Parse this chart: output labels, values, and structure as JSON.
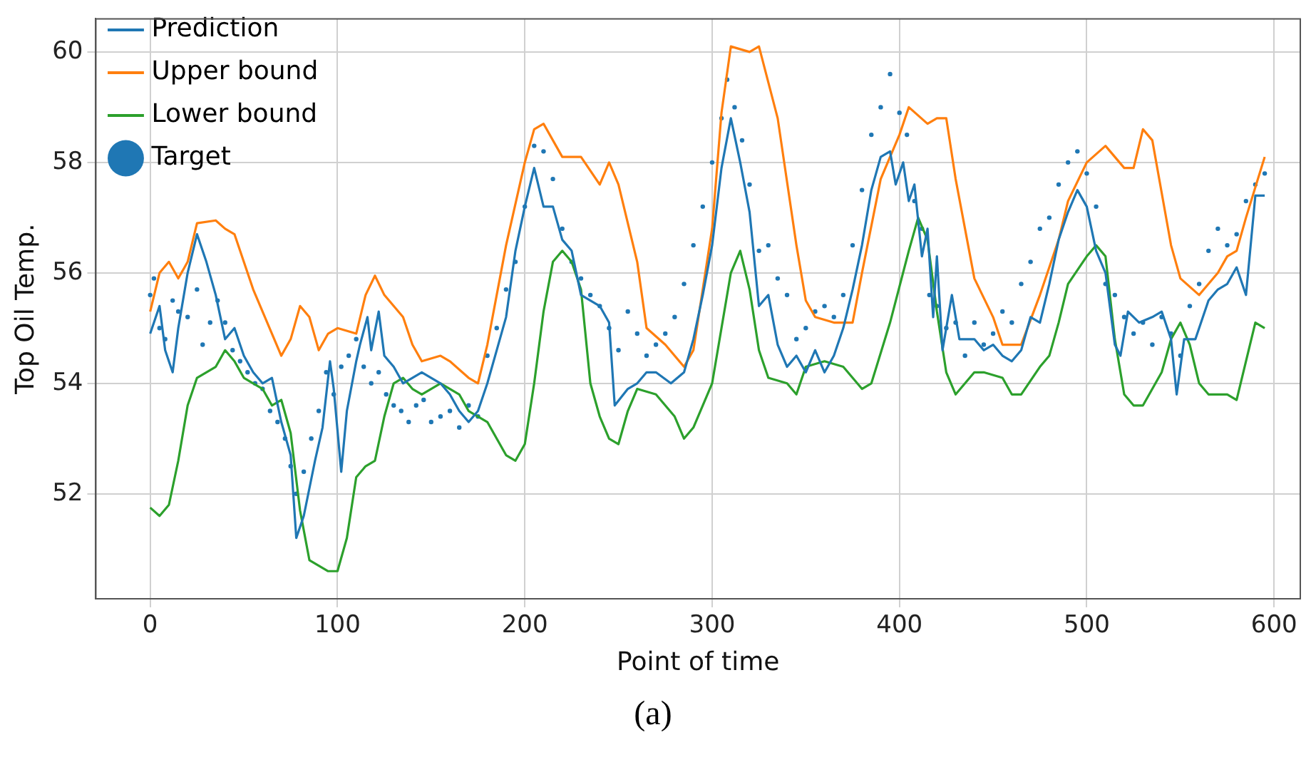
{
  "chart_data": {
    "type": "line",
    "xlabel": "Point of time",
    "ylabel": "Top Oil Temp.",
    "annotations": [
      "(a)"
    ],
    "xlim": [
      -29,
      614
    ],
    "ylim": [
      50.1,
      60.6
    ],
    "xticks": [
      0,
      100,
      200,
      300,
      400,
      500,
      600
    ],
    "yticks": [
      52,
      54,
      56,
      58,
      60
    ],
    "grid": true,
    "legend": "top left",
    "line_style": "solid",
    "series": [
      {
        "name": "Prediction",
        "color": "#1f77b4",
        "type": "line",
        "marker": "none",
        "x": [
          0,
          5,
          8,
          12,
          15,
          20,
          25,
          30,
          35,
          40,
          45,
          50,
          55,
          60,
          65,
          70,
          75,
          78,
          82,
          88,
          92,
          96,
          98,
          102,
          105,
          110,
          112,
          116,
          118,
          122,
          125,
          130,
          135,
          140,
          145,
          150,
          155,
          160,
          165,
          170,
          175,
          180,
          185,
          190,
          195,
          200,
          205,
          210,
          215,
          220,
          225,
          230,
          235,
          240,
          245,
          248,
          255,
          260,
          265,
          270,
          278,
          285,
          290,
          295,
          300,
          305,
          310,
          315,
          320,
          325,
          330,
          335,
          340,
          345,
          350,
          355,
          360,
          365,
          370,
          375,
          380,
          385,
          390,
          395,
          398,
          402,
          405,
          408,
          412,
          415,
          418,
          420,
          423,
          428,
          432,
          440,
          445,
          450,
          455,
          460,
          465,
          470,
          475,
          480,
          485,
          490,
          495,
          500,
          505,
          510,
          515,
          518,
          522,
          528,
          535,
          540,
          545,
          548,
          552,
          558,
          565,
          570,
          575,
          580,
          585,
          590,
          595
        ],
        "values": [
          54.9,
          55.4,
          54.6,
          54.2,
          55.0,
          56.0,
          56.7,
          56.2,
          55.6,
          54.8,
          55.0,
          54.5,
          54.2,
          54.0,
          54.1,
          53.3,
          52.7,
          51.2,
          51.6,
          52.6,
          53.2,
          54.4,
          53.9,
          52.4,
          53.5,
          54.4,
          54.7,
          55.2,
          54.6,
          55.3,
          54.5,
          54.3,
          54.0,
          54.1,
          54.2,
          54.1,
          54.0,
          53.8,
          53.5,
          53.3,
          53.5,
          54.0,
          54.6,
          55.2,
          56.4,
          57.2,
          57.9,
          57.2,
          57.2,
          56.6,
          56.4,
          55.6,
          55.5,
          55.4,
          55.1,
          53.6,
          53.9,
          54.0,
          54.2,
          54.2,
          54.0,
          54.2,
          54.8,
          55.6,
          56.5,
          57.9,
          58.8,
          58.0,
          57.1,
          55.4,
          55.6,
          54.7,
          54.3,
          54.5,
          54.2,
          54.6,
          54.2,
          54.5,
          55.0,
          55.7,
          56.5,
          57.5,
          58.1,
          58.2,
          57.6,
          58.0,
          57.3,
          57.6,
          56.3,
          56.8,
          55.2,
          56.3,
          54.6,
          55.6,
          54.8,
          54.8,
          54.6,
          54.7,
          54.5,
          54.4,
          54.6,
          55.2,
          55.1,
          55.8,
          56.6,
          57.1,
          57.5,
          57.2,
          56.4,
          56.0,
          54.7,
          54.5,
          55.3,
          55.1,
          55.2,
          55.3,
          54.8,
          53.8,
          54.8,
          54.8,
          55.5,
          55.7,
          55.8,
          56.1,
          55.6,
          57.4,
          57.4
        ]
      },
      {
        "name": "Upper bound",
        "color": "#ff7f0e",
        "type": "line",
        "marker": "none",
        "x": [
          0,
          5,
          10,
          15,
          20,
          25,
          35,
          40,
          45,
          55,
          65,
          70,
          75,
          80,
          85,
          90,
          95,
          100,
          110,
          115,
          120,
          125,
          135,
          140,
          145,
          155,
          160,
          170,
          175,
          180,
          190,
          200,
          205,
          210,
          220,
          230,
          240,
          245,
          250,
          260,
          265,
          275,
          285,
          290,
          300,
          305,
          310,
          320,
          325,
          335,
          345,
          350,
          355,
          365,
          375,
          380,
          390,
          400,
          405,
          415,
          420,
          425,
          430,
          440,
          450,
          455,
          465,
          475,
          485,
          490,
          500,
          510,
          520,
          525,
          530,
          535,
          545,
          550,
          560,
          565,
          570,
          575,
          580,
          585,
          595
        ],
        "values": [
          55.3,
          56.0,
          56.2,
          55.9,
          56.2,
          56.9,
          56.95,
          56.8,
          56.7,
          55.7,
          54.9,
          54.5,
          54.8,
          55.4,
          55.2,
          54.6,
          54.9,
          55.0,
          54.9,
          55.6,
          55.95,
          55.6,
          55.2,
          54.7,
          54.4,
          54.5,
          54.4,
          54.1,
          54.0,
          54.7,
          56.5,
          58.0,
          58.6,
          58.7,
          58.1,
          58.1,
          57.6,
          58.0,
          57.6,
          56.2,
          55.0,
          54.7,
          54.3,
          54.6,
          56.8,
          58.9,
          60.1,
          60.0,
          60.1,
          58.8,
          56.5,
          55.5,
          55.2,
          55.1,
          55.1,
          56.0,
          57.7,
          58.5,
          59.0,
          58.7,
          58.8,
          58.8,
          57.7,
          55.9,
          55.2,
          54.7,
          54.7,
          55.6,
          56.6,
          57.3,
          58.0,
          58.3,
          57.9,
          57.9,
          58.6,
          58.4,
          56.5,
          55.9,
          55.6,
          55.8,
          56.0,
          56.3,
          56.4,
          57.0,
          58.1
        ]
      },
      {
        "name": "Lower bound",
        "color": "#2ca02c",
        "type": "line",
        "marker": "none",
        "x": [
          0,
          5,
          10,
          15,
          20,
          25,
          35,
          40,
          45,
          50,
          60,
          65,
          70,
          75,
          80,
          85,
          90,
          95,
          100,
          105,
          110,
          115,
          120,
          125,
          130,
          135,
          140,
          145,
          150,
          155,
          165,
          170,
          180,
          190,
          195,
          200,
          205,
          210,
          215,
          220,
          225,
          230,
          235,
          240,
          245,
          250,
          255,
          260,
          270,
          280,
          285,
          290,
          300,
          305,
          310,
          315,
          320,
          325,
          330,
          340,
          345,
          350,
          360,
          370,
          380,
          385,
          395,
          405,
          410,
          415,
          420,
          425,
          430,
          435,
          440,
          445,
          455,
          460,
          465,
          475,
          480,
          485,
          490,
          500,
          505,
          510,
          515,
          520,
          525,
          530,
          540,
          545,
          550,
          555,
          560,
          565,
          575,
          580,
          590,
          595
        ],
        "values": [
          51.75,
          51.6,
          51.8,
          52.6,
          53.6,
          54.1,
          54.3,
          54.6,
          54.4,
          54.1,
          53.9,
          53.6,
          53.7,
          53.1,
          51.7,
          50.8,
          50.7,
          50.6,
          50.6,
          51.2,
          52.3,
          52.5,
          52.6,
          53.4,
          54.0,
          54.1,
          53.9,
          53.8,
          53.9,
          54.0,
          53.8,
          53.5,
          53.3,
          52.7,
          52.6,
          52.9,
          54.0,
          55.3,
          56.2,
          56.4,
          56.2,
          55.7,
          54.0,
          53.4,
          53.0,
          52.9,
          53.5,
          53.9,
          53.8,
          53.4,
          53.0,
          53.2,
          54.0,
          55.0,
          56.0,
          56.4,
          55.7,
          54.6,
          54.1,
          54.0,
          53.8,
          54.3,
          54.4,
          54.3,
          53.9,
          54.0,
          55.1,
          56.4,
          57.0,
          56.6,
          55.3,
          54.2,
          53.8,
          54.0,
          54.2,
          54.2,
          54.1,
          53.8,
          53.8,
          54.3,
          54.5,
          55.1,
          55.8,
          56.3,
          56.5,
          56.3,
          54.8,
          53.8,
          53.6,
          53.6,
          54.2,
          54.8,
          55.1,
          54.7,
          54.0,
          53.8,
          53.8,
          53.7,
          55.1,
          55.0
        ]
      },
      {
        "name": "Target",
        "color": "#1f77b4",
        "type": "scatter",
        "marker": "circle",
        "x": [
          0,
          2,
          5,
          8,
          12,
          15,
          20,
          25,
          28,
          32,
          36,
          40,
          44,
          48,
          52,
          56,
          60,
          64,
          68,
          72,
          75,
          78,
          82,
          86,
          90,
          94,
          98,
          102,
          106,
          110,
          114,
          118,
          122,
          126,
          130,
          134,
          138,
          142,
          146,
          150,
          155,
          160,
          165,
          170,
          175,
          180,
          185,
          190,
          195,
          200,
          205,
          210,
          215,
          220,
          225,
          230,
          235,
          240,
          245,
          250,
          255,
          260,
          265,
          270,
          275,
          280,
          285,
          290,
          295,
          300,
          305,
          308,
          312,
          316,
          320,
          325,
          330,
          335,
          340,
          345,
          350,
          355,
          360,
          365,
          370,
          375,
          380,
          385,
          390,
          395,
          400,
          404,
          408,
          412,
          416,
          420,
          425,
          430,
          435,
          440,
          445,
          450,
          455,
          460,
          465,
          470,
          475,
          480,
          485,
          490,
          495,
          500,
          505,
          510,
          515,
          520,
          525,
          530,
          535,
          540,
          545,
          550,
          555,
          560,
          565,
          570,
          575,
          580,
          585,
          590,
          595
        ],
        "values": [
          55.6,
          55.9,
          55.0,
          54.8,
          55.5,
          55.3,
          55.2,
          55.7,
          54.7,
          55.1,
          55.5,
          55.1,
          54.6,
          54.4,
          54.2,
          54.0,
          53.9,
          53.5,
          53.3,
          53.0,
          52.5,
          52.0,
          52.4,
          53.0,
          53.5,
          54.2,
          53.8,
          54.3,
          54.5,
          54.8,
          54.3,
          54.0,
          54.2,
          53.8,
          53.6,
          53.5,
          53.3,
          53.6,
          53.7,
          53.3,
          53.4,
          53.5,
          53.2,
          53.6,
          53.4,
          54.5,
          55.0,
          55.7,
          56.2,
          57.2,
          58.3,
          58.2,
          57.7,
          56.8,
          56.2,
          55.9,
          55.6,
          55.4,
          55.0,
          54.6,
          55.3,
          54.9,
          54.5,
          54.7,
          54.9,
          55.2,
          55.8,
          56.5,
          57.2,
          58.0,
          58.8,
          59.5,
          59.0,
          58.4,
          57.6,
          56.4,
          56.5,
          55.9,
          55.6,
          54.8,
          55.0,
          55.3,
          55.4,
          55.2,
          55.6,
          56.5,
          57.5,
          58.5,
          59.0,
          59.6,
          58.9,
          58.5,
          57.3,
          56.8,
          55.6,
          55.4,
          55.0,
          55.1,
          54.5,
          55.1,
          54.7,
          54.9,
          55.3,
          55.1,
          55.8,
          56.2,
          56.8,
          57.0,
          57.6,
          58.0,
          58.2,
          57.8,
          57.2,
          55.8,
          55.6,
          55.2,
          54.9,
          55.1,
          54.7,
          55.2,
          54.9,
          54.5,
          55.4,
          55.8,
          56.4,
          56.8,
          56.5,
          56.7,
          57.3,
          57.6,
          57.8
        ]
      }
    ]
  }
}
